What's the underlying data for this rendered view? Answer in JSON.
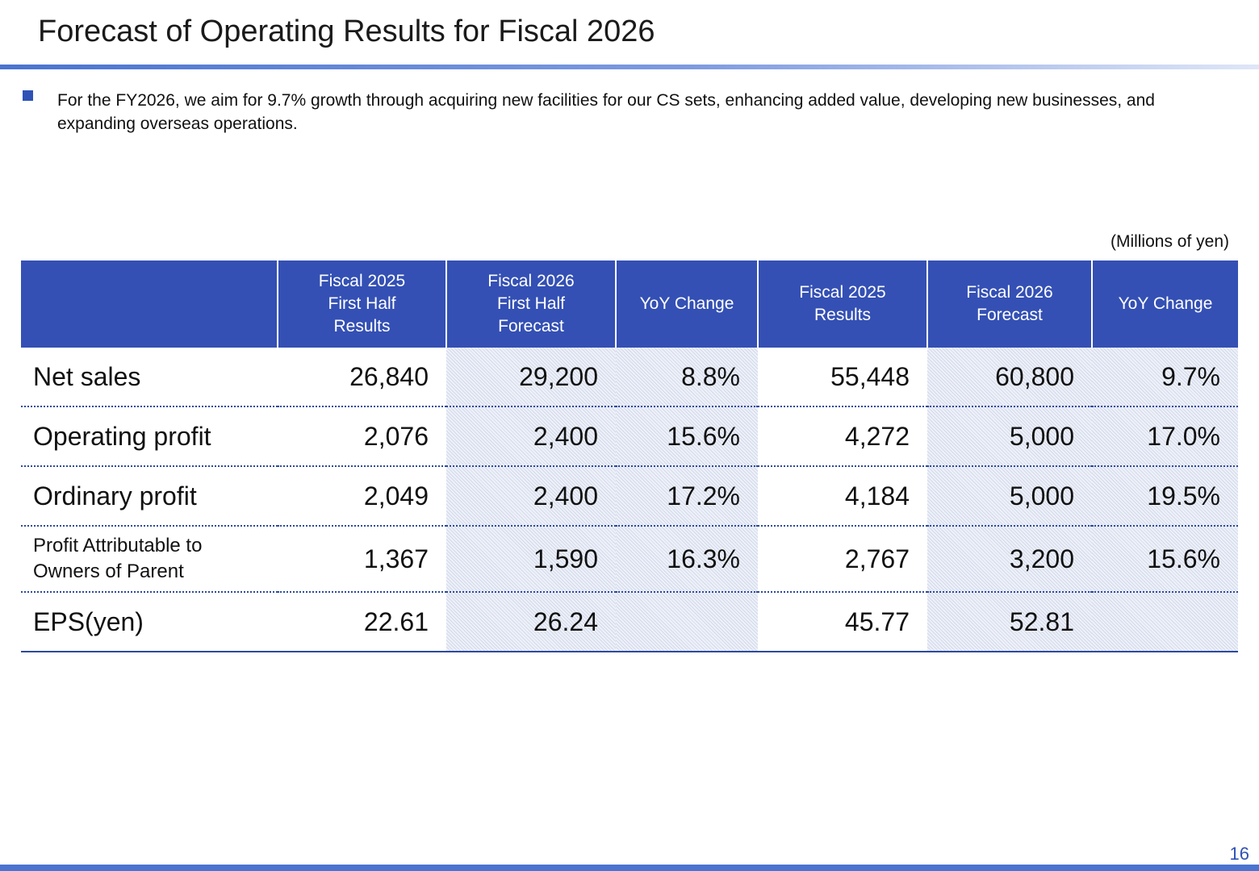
{
  "title": "Forecast of Operating Results for Fiscal 2026",
  "bullet": "For the FY2026, we aim for 9.7% growth through acquiring new facilities for our CS sets, enhancing added value, developing new businesses, and expanding overseas operations.",
  "units": "(Millions of yen)",
  "table": {
    "headers": [
      "",
      "Fiscal 2025\nFirst Half\nResults",
      "Fiscal 2026\nFirst Half\nForecast",
      "YoY Change",
      "Fiscal 2025\nResults",
      "Fiscal 2026\nForecast",
      "YoY Change"
    ],
    "rows": [
      {
        "label": "Net sales",
        "values": [
          "26,840",
          "29,200",
          "8.8%",
          "55,448",
          "60,800",
          "9.7%"
        ]
      },
      {
        "label": "Operating profit",
        "values": [
          "2,076",
          "2,400",
          "15.6%",
          "4,272",
          "5,000",
          "17.0%"
        ]
      },
      {
        "label": "Ordinary profit",
        "values": [
          "2,049",
          "2,400",
          "17.2%",
          "4,184",
          "5,000",
          "19.5%"
        ]
      },
      {
        "label": "Profit Attributable to Owners of Parent",
        "values": [
          "1,367",
          "1,590",
          "16.3%",
          "2,767",
          "3,200",
          "15.6%"
        ]
      },
      {
        "label": "EPS(yen)",
        "values": [
          "22.61",
          "26.24",
          "",
          "45.77",
          "52.81",
          ""
        ]
      }
    ]
  },
  "page_number": "16",
  "colors": {
    "accent": "#3450b4",
    "rule": "#4a74d0",
    "shade": "#eef1f9"
  }
}
